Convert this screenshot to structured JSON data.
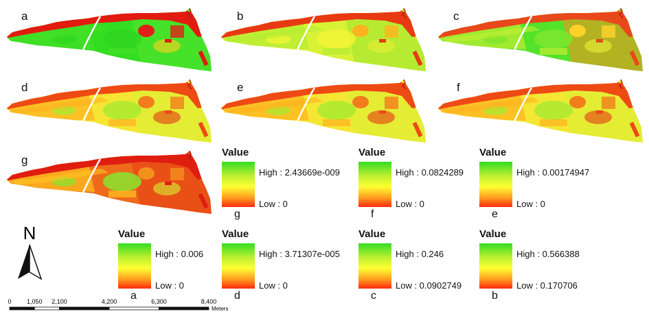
{
  "panels": [
    {
      "id": "a",
      "label": "a",
      "mode": "green"
    },
    {
      "id": "b",
      "label": "b",
      "mode": "yellow"
    },
    {
      "id": "c",
      "label": "c",
      "mode": "greenyellow"
    },
    {
      "id": "d",
      "label": "d",
      "mode": "orange"
    },
    {
      "id": "e",
      "label": "e",
      "mode": "orange"
    },
    {
      "id": "f",
      "label": "f",
      "mode": "orange"
    },
    {
      "id": "g",
      "label": "g",
      "mode": "red"
    }
  ],
  "legends": [
    {
      "id": "g",
      "title": "Value",
      "high": "High : 2.43669e-009",
      "low": "Low : 0",
      "label": "g"
    },
    {
      "id": "f",
      "title": "Value",
      "high": "High : 0.0824289",
      "low": "Low : 0",
      "label": "f"
    },
    {
      "id": "e",
      "title": "Value",
      "high": "High : 0.00174947",
      "low": "Low : 0",
      "label": "e"
    },
    {
      "id": "a",
      "title": "Value",
      "high": "High : 0.006",
      "low": "Low : 0",
      "label": "a"
    },
    {
      "id": "d",
      "title": "Value",
      "high": "High : 3.71307e-005",
      "low": "Low : 0",
      "label": "d"
    },
    {
      "id": "c",
      "title": "Value",
      "high": "High : 0.246",
      "low": "Low : 0.0902749",
      "label": "c"
    },
    {
      "id": "b",
      "title": "Value",
      "high": "High : 0.566388",
      "low": "Low : 0.170706",
      "label": "b"
    }
  ],
  "north_arrow": {
    "label": "N"
  },
  "scalebar": {
    "ticks": [
      "0",
      "1,050",
      "2,100",
      "4,200",
      "6,300",
      "8,400"
    ],
    "tick_values": [
      0,
      1050,
      2100,
      4200,
      6300,
      8400
    ],
    "unit": "Meters"
  },
  "colors": {
    "high": "#33dd22",
    "mid": "#ffff33",
    "low": "#ff2a0e",
    "road": "#ffffff"
  }
}
